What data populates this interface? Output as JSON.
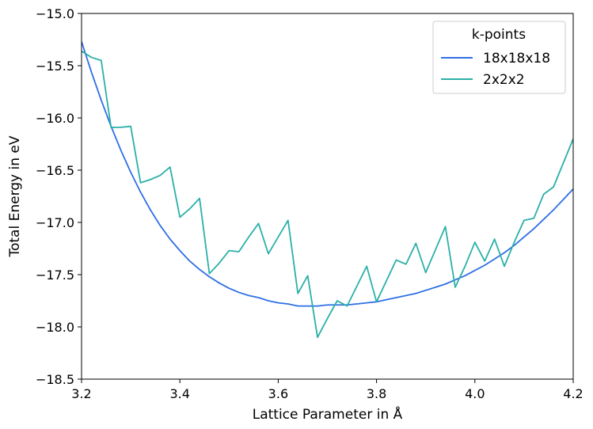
{
  "chart_data": {
    "type": "line",
    "title": "",
    "xlabel": "Lattice Parameter in Å",
    "ylabel": "Total Energy in eV",
    "xlim": [
      3.2,
      4.2
    ],
    "ylim": [
      -18.5,
      -15.0
    ],
    "x_ticks": [
      3.2,
      3.4,
      3.6,
      3.8,
      4.0,
      4.2
    ],
    "x_tick_labels": [
      "3.2",
      "3.4",
      "3.6",
      "3.8",
      "4.0",
      "4.2"
    ],
    "y_ticks": [
      -18.5,
      -18.0,
      -17.5,
      -17.0,
      -16.5,
      -16.0,
      -15.5,
      -15.0
    ],
    "y_tick_labels": [
      "−18.5",
      "−18.0",
      "−17.5",
      "−17.0",
      "−16.5",
      "−16.0",
      "−15.5",
      "−15.0"
    ],
    "grid": false,
    "legend": {
      "title": "k-points",
      "position": "top-right"
    },
    "series": [
      {
        "name": "18x18x18",
        "color": "#2f6fe4",
        "x": [
          3.2,
          3.22,
          3.24,
          3.26,
          3.28,
          3.3,
          3.32,
          3.34,
          3.36,
          3.38,
          3.4,
          3.42,
          3.44,
          3.46,
          3.48,
          3.5,
          3.52,
          3.54,
          3.56,
          3.58,
          3.6,
          3.62,
          3.64,
          3.66,
          3.68,
          3.7,
          3.72,
          3.74,
          3.76,
          3.78,
          3.8,
          3.82,
          3.84,
          3.86,
          3.88,
          3.9,
          3.92,
          3.94,
          3.96,
          3.98,
          4.0,
          4.02,
          4.04,
          4.06,
          4.08,
          4.1,
          4.12,
          4.14,
          4.16,
          4.18,
          4.2
        ],
        "y": [
          -15.27,
          -15.56,
          -15.83,
          -16.08,
          -16.31,
          -16.52,
          -16.71,
          -16.88,
          -17.03,
          -17.16,
          -17.27,
          -17.37,
          -17.45,
          -17.52,
          -17.58,
          -17.63,
          -17.67,
          -17.7,
          -17.72,
          -17.75,
          -17.77,
          -17.78,
          -17.8,
          -17.8,
          -17.8,
          -17.79,
          -17.79,
          -17.79,
          -17.78,
          -17.77,
          -17.76,
          -17.74,
          -17.72,
          -17.7,
          -17.68,
          -17.65,
          -17.62,
          -17.59,
          -17.55,
          -17.51,
          -17.46,
          -17.41,
          -17.35,
          -17.29,
          -17.22,
          -17.14,
          -17.06,
          -16.97,
          -16.88,
          -16.78,
          -16.68
        ]
      },
      {
        "name": "2x2x2",
        "color": "#2ab0a8",
        "x": [
          3.2,
          3.22,
          3.24,
          3.26,
          3.28,
          3.3,
          3.32,
          3.34,
          3.36,
          3.38,
          3.4,
          3.42,
          3.44,
          3.46,
          3.48,
          3.5,
          3.52,
          3.54,
          3.56,
          3.58,
          3.6,
          3.62,
          3.64,
          3.66,
          3.68,
          3.7,
          3.72,
          3.74,
          3.76,
          3.78,
          3.8,
          3.82,
          3.84,
          3.86,
          3.88,
          3.9,
          3.92,
          3.94,
          3.96,
          3.98,
          4.0,
          4.02,
          4.04,
          4.06,
          4.08,
          4.1,
          4.12,
          4.14,
          4.16,
          4.18,
          4.2
        ],
        "y": [
          -15.36,
          -15.42,
          -15.45,
          -16.09,
          -16.09,
          -16.08,
          -16.62,
          -16.59,
          -16.55,
          -16.47,
          -16.95,
          -16.87,
          -16.77,
          -17.49,
          -17.39,
          -17.27,
          -17.28,
          -17.14,
          -17.01,
          -17.3,
          -17.14,
          -16.98,
          -17.68,
          -17.51,
          -18.1,
          -17.92,
          -17.75,
          -17.8,
          -17.61,
          -17.42,
          -17.76,
          -17.56,
          -17.36,
          -17.4,
          -17.2,
          -17.48,
          -17.26,
          -17.04,
          -17.62,
          -17.42,
          -17.19,
          -17.37,
          -17.16,
          -17.42,
          -17.19,
          -16.98,
          -16.96,
          -16.73,
          -16.66,
          -16.43,
          -16.2
        ]
      }
    ]
  }
}
